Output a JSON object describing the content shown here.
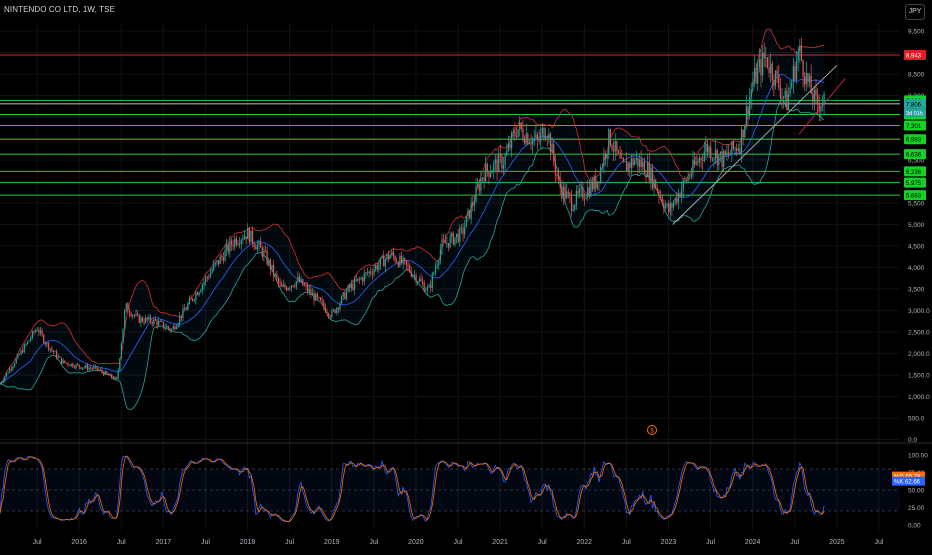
{
  "header": {
    "title": "NINTENDO CO LTD, 1W, TSE",
    "currency_button": "JPY"
  },
  "colors": {
    "background": "#000000",
    "up": "#26a69a",
    "down": "#ef5350",
    "resistance": "#e91e2a",
    "support": "#26c940",
    "mid_band": "#2962ff",
    "upper_band": "#d32f2f",
    "lower_band": "#26a69a",
    "k_line": "#2962ff",
    "d_line": "#ff6d00",
    "axis_text": "#b2b5be"
  },
  "event_marker": {
    "icon": "dollar-icon",
    "label": "$"
  },
  "chart_data": [
    {
      "type": "candlestick",
      "title": "NINTENDO CO LTD, 1W, TSE",
      "y_scale": "log",
      "ylim": [
        0,
        9500
      ],
      "y_ticks": [
        "9,500",
        "9,000",
        "8,500",
        "8,000",
        "7,500",
        "7,000",
        "6,500",
        "6,000",
        "5,500",
        "5,000",
        "4,500",
        "4,000",
        "3,500",
        "3,000.0",
        "2,500.0",
        "2,000.0",
        "1,500.0",
        "1,000.0",
        "500.0",
        "0.0"
      ],
      "y_tick_values": [
        9500,
        9000,
        8500,
        8000,
        7500,
        7000,
        6500,
        6000,
        5500,
        5000,
        4500,
        4000,
        3500,
        3000,
        2500,
        2000,
        1500,
        1000,
        500,
        0
      ],
      "x_ticks": [
        "Jul",
        "2016",
        "Jul",
        "2017",
        "Jul",
        "2018",
        "Jul",
        "2019",
        "Jul",
        "2020",
        "Jul",
        "2021",
        "Jul",
        "2022",
        "Jul",
        "2023",
        "Jul",
        "2024",
        "Jul",
        "2025",
        "Jul"
      ],
      "x_tick_dates": [
        2015.5,
        2016.0,
        2016.5,
        2017.0,
        2017.5,
        2018.0,
        2018.5,
        2019.0,
        2019.5,
        2020.0,
        2020.5,
        2021.0,
        2021.5,
        2022.0,
        2022.5,
        2023.0,
        2023.5,
        2024.0,
        2024.5,
        2025.0,
        2025.5
      ],
      "price_series": {
        "points": [
          [
            2015.06,
            1300
          ],
          [
            2015.3,
            2000
          ],
          [
            2015.5,
            2600
          ],
          [
            2015.6,
            2250
          ],
          [
            2015.8,
            1800
          ],
          [
            2016.0,
            1700
          ],
          [
            2016.2,
            1650
          ],
          [
            2016.45,
            1380
          ],
          [
            2016.55,
            3100
          ],
          [
            2016.7,
            2800
          ],
          [
            2016.9,
            2750
          ],
          [
            2017.1,
            2550
          ],
          [
            2017.35,
            3300
          ],
          [
            2017.6,
            4000
          ],
          [
            2017.85,
            4650
          ],
          [
            2018.0,
            4800
          ],
          [
            2018.2,
            4300
          ],
          [
            2018.4,
            3500
          ],
          [
            2018.6,
            3700
          ],
          [
            2018.8,
            3300
          ],
          [
            2019.0,
            2900
          ],
          [
            2019.2,
            3500
          ],
          [
            2019.45,
            3900
          ],
          [
            2019.7,
            4300
          ],
          [
            2019.9,
            4000
          ],
          [
            2020.15,
            3450
          ],
          [
            2020.3,
            4500
          ],
          [
            2020.55,
            4800
          ],
          [
            2020.8,
            6200
          ],
          [
            2021.05,
            6500
          ],
          [
            2021.2,
            7250
          ],
          [
            2021.45,
            6900
          ],
          [
            2021.55,
            7300
          ],
          [
            2021.7,
            5900
          ],
          [
            2021.85,
            5500
          ],
          [
            2022.0,
            5750
          ],
          [
            2022.15,
            6000
          ],
          [
            2022.3,
            7050
          ],
          [
            2022.45,
            6300
          ],
          [
            2022.6,
            6500
          ],
          [
            2022.75,
            6300
          ],
          [
            2022.9,
            5700
          ],
          [
            2023.0,
            5300
          ],
          [
            2023.2,
            6000
          ],
          [
            2023.45,
            6800
          ],
          [
            2023.65,
            6500
          ],
          [
            2023.85,
            6900
          ],
          [
            2024.0,
            8300
          ],
          [
            2024.15,
            8900
          ],
          [
            2024.3,
            8300
          ],
          [
            2024.4,
            7800
          ],
          [
            2024.55,
            9050
          ],
          [
            2024.65,
            8300
          ],
          [
            2024.75,
            7800
          ],
          [
            2024.85,
            7900
          ]
        ],
        "bollinger_period": 20
      },
      "horizontal_levels": [
        {
          "label": "8,943",
          "value": 8943,
          "kind": "resistance"
        },
        {
          "label": "7,886",
          "value": 7886,
          "kind": "support"
        },
        {
          "label": "7,806",
          "value": 7806,
          "kind": "current"
        },
        {
          "label": "7,558",
          "value": 7558,
          "kind": "support"
        },
        {
          "label": "7,301",
          "value": 7301,
          "kind": "support"
        },
        {
          "label": "6,983",
          "value": 6983,
          "kind": "support"
        },
        {
          "label": "6,638",
          "value": 6638,
          "kind": "support"
        },
        {
          "label": "6,236",
          "value": 6236,
          "kind": "support"
        },
        {
          "label": "5,975",
          "value": 5975,
          "kind": "support"
        },
        {
          "label": "5,683",
          "value": 5683,
          "kind": "support"
        }
      ],
      "countdown_label": "3d 01h",
      "trendlines": [
        {
          "from": [
            2023.05,
            5000
          ],
          "to": [
            2025.0,
            8700
          ],
          "kind": "rising"
        }
      ]
    },
    {
      "type": "line",
      "title": "",
      "ylim": [
        0,
        100
      ],
      "y_ticks": [
        "100.00",
        "75.00",
        "50.00",
        "25.00",
        "0.00"
      ],
      "y_tick_values": [
        100,
        75,
        50,
        25,
        0
      ],
      "bands": [
        80,
        50,
        20
      ],
      "series": [
        {
          "name": "%D",
          "last_value": 69.78,
          "label": "69.78"
        },
        {
          "name": "%K",
          "last_value": 62.66,
          "label": "62.66"
        }
      ]
    }
  ]
}
